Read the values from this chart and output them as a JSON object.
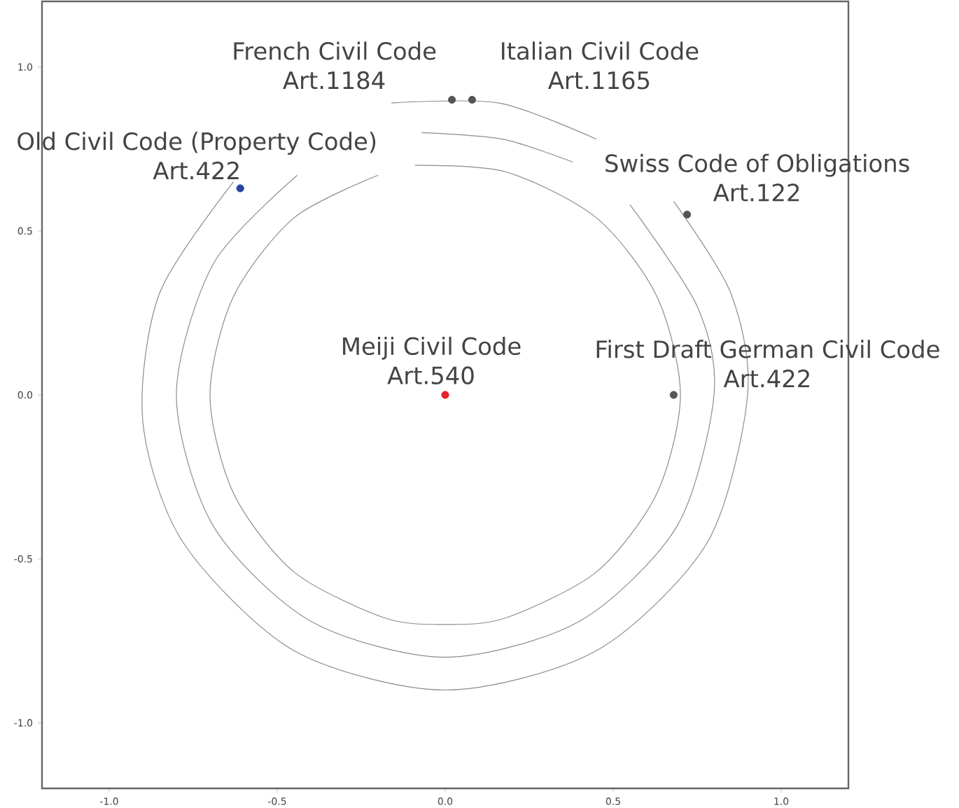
{
  "chart_data": {
    "type": "scatter",
    "xlim": [
      -1.2,
      1.2
    ],
    "ylim": [
      -1.2,
      1.2
    ],
    "xticks": [
      {
        "value": -1,
        "label": "-1.0"
      },
      {
        "value": -0.5,
        "label": "-0.5"
      },
      {
        "value": 0,
        "label": "0.0"
      },
      {
        "value": 0.5,
        "label": "0.5"
      },
      {
        "value": 1,
        "label": "1.0"
      }
    ],
    "yticks": [
      {
        "value": -1,
        "label": "-1.0"
      },
      {
        "value": -0.5,
        "label": "-0.5"
      },
      {
        "value": 0,
        "label": "0.0"
      },
      {
        "value": 0.5,
        "label": "0.5"
      },
      {
        "value": 1,
        "label": "1.0"
      }
    ],
    "series": [
      {
        "type": "line",
        "marker": "none",
        "color": "#8c8c8c",
        "x": [
          -0.2,
          -0.45,
          -0.63,
          -0.7,
          -0.63,
          -0.45,
          -0.18,
          0,
          0.18,
          0.45,
          0.63,
          0.7,
          0.63,
          0.45,
          0.18,
          -0.09
        ],
        "values": [
          0.67,
          0.54,
          0.3,
          0,
          -0.3,
          -0.54,
          -0.68,
          -0.7,
          -0.68,
          -0.54,
          -0.3,
          0,
          0.3,
          0.54,
          0.68,
          0.7
        ]
      },
      {
        "type": "line",
        "marker": "none",
        "color": "#8c8c8c",
        "x": [
          -0.44,
          -0.69,
          -0.8,
          -0.69,
          -0.4,
          0,
          0.4,
          0.69,
          0.8,
          0.75,
          0.55
        ],
        "values": [
          0.67,
          0.4,
          0,
          -0.4,
          -0.69,
          -0.8,
          -0.69,
          -0.4,
          0,
          0.27,
          0.58
        ]
      },
      {
        "type": "line",
        "marker": "none",
        "color": "#8c8c8c",
        "x": [
          0.38,
          0.17,
          -0.07
        ],
        "values": [
          0.71,
          0.78,
          0.8
        ]
      },
      {
        "type": "line",
        "marker": "none",
        "color": "#8c8c8c",
        "x": [
          -0.63,
          -0.85,
          -0.9,
          -0.78,
          -0.45,
          0,
          0.45,
          0.78,
          0.9,
          0.85,
          0.68
        ],
        "values": [
          0.65,
          0.31,
          -0.08,
          -0.45,
          -0.78,
          -0.9,
          -0.78,
          -0.45,
          0,
          0.31,
          0.59
        ]
      },
      {
        "type": "line",
        "marker": "none",
        "color": "#8c8c8c",
        "x": [
          0.45,
          0.16,
          -0.16
        ],
        "values": [
          0.78,
          0.89,
          0.89
        ]
      },
      {
        "marker": "circle",
        "x": [
          0,
          -0.61,
          0.02,
          0.08,
          0.72,
          0.68
        ],
        "values": [
          0,
          0.63,
          0.9,
          0.9,
          0.55,
          0
        ],
        "colors": [
          "#e8202a",
          "#2a45a0",
          "#555555",
          "#555555",
          "#555555",
          "#555555"
        ]
      }
    ],
    "annotations": [
      "Meiji Civil Code",
      "Art.540",
      "Old Civil Code (Property Code)",
      "Art.422",
      "French Civil Code",
      "Art.1184",
      "Italian Civil Code",
      "Art.1165",
      "Swiss Code of Obligations",
      "Art.122",
      "First Draft German Civil Code",
      "Art.422"
    ]
  }
}
